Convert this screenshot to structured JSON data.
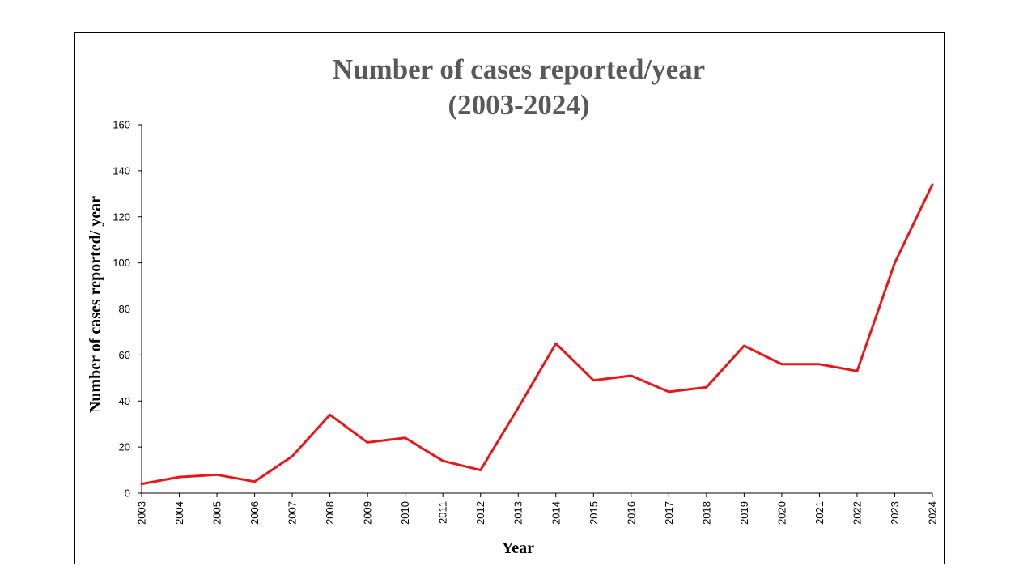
{
  "chart_data": {
    "type": "line",
    "title": [
      "Number of cases reported/year",
      "(2003-2024)"
    ],
    "xlabel": "Year",
    "ylabel": "Number of cases reported/ year",
    "x": [
      "2003",
      "2004",
      "2005",
      "2006",
      "2007",
      "2008",
      "2009",
      "2010",
      "2011",
      "2012",
      "2013",
      "2014",
      "2015",
      "2016",
      "2017",
      "2018",
      "2019",
      "2020",
      "2021",
      "2022",
      "2023",
      "2024"
    ],
    "series": [
      {
        "values": [
          4,
          7,
          8,
          5,
          16,
          34,
          22,
          24,
          14,
          10,
          37,
          65,
          49,
          51,
          44,
          46,
          64,
          56,
          56,
          53,
          100,
          134
        ],
        "color": "#e31a1c"
      }
    ],
    "ylim": [
      0,
      160
    ],
    "yticks": [
      0,
      20,
      40,
      60,
      80,
      100,
      120,
      140,
      160
    ],
    "grid": false,
    "legend": "none"
  }
}
